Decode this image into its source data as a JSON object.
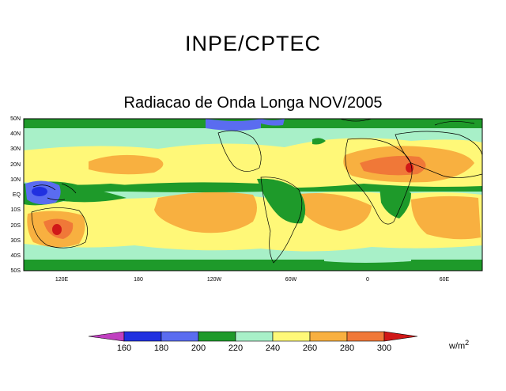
{
  "header": {
    "title": "INPE/CPTEC"
  },
  "map": {
    "title": "Radiacao de Onda Longa NOV/2005",
    "lat_labels": [
      "50N",
      "40N",
      "30N",
      "20N",
      "10N",
      "EQ",
      "10S",
      "20S",
      "30S",
      "40S",
      "50S"
    ],
    "lon_labels": [
      "120E",
      "180",
      "120W",
      "60W",
      "0",
      "60E"
    ],
    "colors": {
      "below_160": "#c040c0",
      "160_180": "#2030e0",
      "180_200": "#5a6cf0",
      "200_220": "#1e9a2a",
      "220_240": "#a8f0c8",
      "240_260": "#fff878",
      "260_280": "#f8b040",
      "280_300": "#f07838",
      "above_300": "#d01818"
    }
  },
  "colorbar": {
    "ticks": [
      "160",
      "180",
      "200",
      "220",
      "240",
      "260",
      "280",
      "300"
    ],
    "units_base": "w/m",
    "units_exp": "2"
  }
}
